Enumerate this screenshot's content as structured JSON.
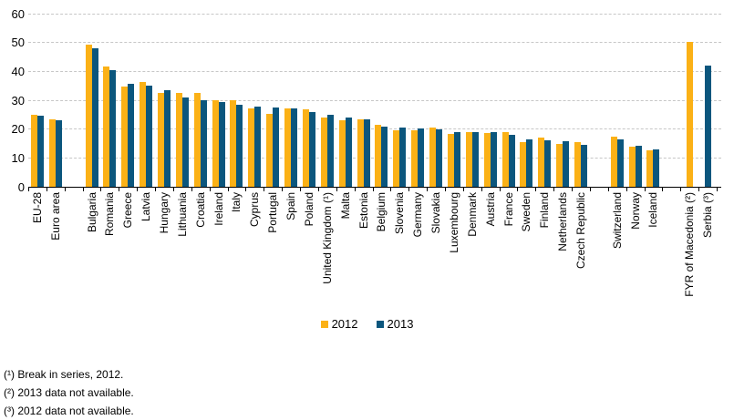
{
  "chart_data": {
    "type": "bar",
    "title": "",
    "categories": [
      "EU-28",
      "Euro area",
      "Bulgaria",
      "Romania",
      "Greece",
      "Latvia",
      "Hungary",
      "Lithuania",
      "Croatia",
      "Ireland",
      "Italy",
      "Cyprus",
      "Portugal",
      "Spain",
      "Poland",
      "United Kingdom (¹)",
      "Malta",
      "Estonia",
      "Belgium",
      "Slovenia",
      "Germany",
      "Slovakia",
      "Luxembourg",
      "Denmark",
      "Austria",
      "France",
      "Sweden",
      "Finland",
      "Netherlands",
      "Czech Republic",
      "Switzerland",
      "Norway",
      "Iceland",
      "FYR of Macedonia (²)",
      "Serbia (³)"
    ],
    "series": [
      {
        "name": "2012",
        "color": "#FBB116",
        "values": [
          24.8,
          23.3,
          49.3,
          41.7,
          34.6,
          36.2,
          32.4,
          32.5,
          32.6,
          30.0,
          29.9,
          27.1,
          25.3,
          27.2,
          26.7,
          24.1,
          23.1,
          23.4,
          21.6,
          19.6,
          19.6,
          20.5,
          18.4,
          19.0,
          18.5,
          19.1,
          15.6,
          17.2,
          15.0,
          15.4,
          17.5,
          13.8,
          12.7,
          50.3,
          null
        ]
      },
      {
        "name": "2013",
        "color": "#0B567D",
        "values": [
          24.5,
          23.1,
          48.0,
          40.4,
          35.7,
          35.1,
          33.5,
          30.8,
          29.9,
          29.5,
          28.4,
          27.8,
          27.5,
          27.3,
          25.8,
          24.8,
          24.0,
          23.5,
          20.8,
          20.4,
          20.3,
          19.8,
          19.0,
          18.9,
          18.8,
          18.1,
          16.4,
          16.0,
          15.9,
          14.6,
          16.3,
          14.1,
          13.0,
          null,
          42.0
        ]
      }
    ],
    "ylim": [
      0,
      60
    ],
    "yticks": [
      0,
      10,
      20,
      30,
      40,
      50,
      60
    ],
    "grid": "horizontal-dashed",
    "legend_position": "bottom-center",
    "gap_after_indices": [
      1,
      29,
      32
    ]
  },
  "footnotes": [
    "(¹) Break in series, 2012.",
    "(²) 2013 data not available.",
    "(³) 2012 data not available."
  ]
}
